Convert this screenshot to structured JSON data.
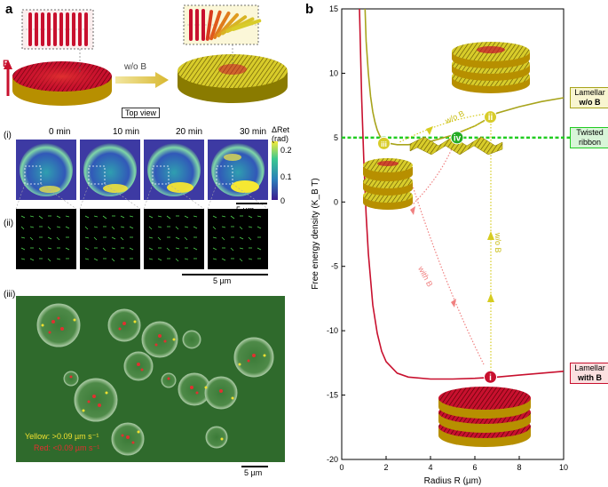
{
  "panel_a": {
    "letter": "a",
    "b_label": "B",
    "arrow_label": "w/o B",
    "top_view_label": "Top view",
    "row_i_label": "(i)",
    "row_ii_label": "(ii)",
    "row_iii_label": "(iii)",
    "times": [
      "0 min",
      "10 min",
      "20 min",
      "30 min"
    ],
    "colorbar": {
      "title": "ΔRet",
      "unit": "(rad)",
      "ticks": [
        "0.2",
        "0.1",
        "0"
      ]
    },
    "scale_bar_i": "5 µm",
    "scale_bar_ii": "5 µm",
    "scale_bar_iii": "5 µm",
    "legend_yellow": "Yellow:  >0.09 µm s⁻¹",
    "legend_red": "Red:  <0.09 µm s⁻¹",
    "colors": {
      "red": "#c8102e",
      "yellow": "#d8cc2a",
      "green_bg": "#2f6a2c"
    }
  },
  "panel_b": {
    "letter": "b",
    "annotations": {
      "lamellar_wo": "Lamellar",
      "lamellar_wo_b": "w/o B",
      "twisted": "Twisted",
      "twisted2": "ribbon",
      "lamellar_with": "Lamellar",
      "lamellar_with_b": "with B",
      "path_with_b": "with B",
      "path_wo_b_vertical": "w/o B",
      "path_wo_b_top": "w/o B",
      "point_i": "i",
      "point_ii": "ii",
      "point_iii": "iii",
      "point_iv": "iv"
    },
    "colors": {
      "red_curve": "#c8102e",
      "olive_curve": "#a8a41c",
      "dashed_green": "#22cc22",
      "red_path": "#f08080",
      "yellow_path": "#d6cc20"
    }
  },
  "chart_data": {
    "type": "line",
    "xlabel": "Radius R (µm)",
    "ylabel": "Free energy density (K_B T)",
    "xlim": [
      0,
      10
    ],
    "ylim": [
      -20,
      15
    ],
    "xticks": [
      0,
      2,
      4,
      6,
      8,
      10
    ],
    "yticks": [
      15,
      10,
      5,
      0,
      -5,
      -10,
      -15,
      -20
    ],
    "grid": false,
    "series": [
      {
        "name": "Lamellar with B",
        "x": [
          0.8,
          0.9,
          1.0,
          1.1,
          1.2,
          1.4,
          1.6,
          1.8,
          2.0,
          2.5,
          3,
          4,
          5,
          6,
          7,
          8,
          9,
          10
        ],
        "y": [
          15,
          8,
          3,
          -1,
          -4,
          -8,
          -10.2,
          -11.6,
          -12.4,
          -13.3,
          -13.6,
          -13.75,
          -13.75,
          -13.7,
          -13.6,
          -13.45,
          -13.3,
          -13.15
        ]
      },
      {
        "name": "Lamellar w/o B",
        "x": [
          1.05,
          1.1,
          1.2,
          1.3,
          1.4,
          1.5,
          1.6,
          1.7,
          1.8,
          2.0,
          2.5,
          3,
          4,
          5,
          6,
          6.7,
          7,
          8,
          9,
          10
        ],
        "y": [
          15,
          12.5,
          10,
          8.2,
          7,
          6.2,
          5.6,
          5.2,
          4.9,
          4.6,
          4.45,
          4.45,
          4.7,
          5.2,
          5.9,
          6.6,
          6.9,
          7.4,
          7.8,
          8.1
        ]
      },
      {
        "name": "Twisted ribbon",
        "x": [
          0,
          10
        ],
        "y": [
          5,
          5
        ]
      }
    ],
    "points": [
      {
        "label": "i",
        "x": 6.7,
        "y": -13.6
      },
      {
        "label": "ii",
        "x": 6.7,
        "y": 6.6
      },
      {
        "label": "iii",
        "x": 1.9,
        "y": 4.55
      },
      {
        "label": "iv",
        "x": 5.2,
        "y": 5.0
      }
    ]
  }
}
